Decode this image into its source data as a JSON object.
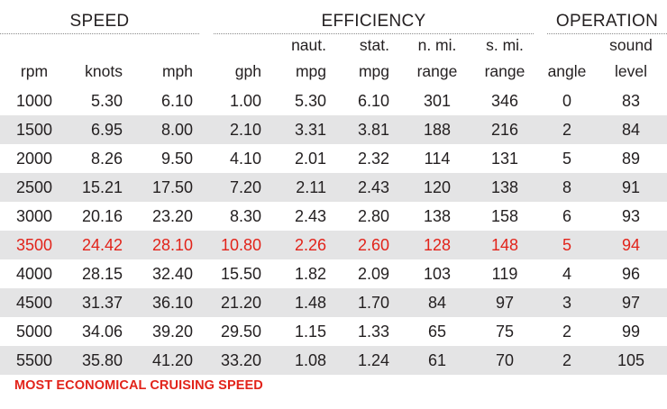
{
  "groups": {
    "speed": "SPEED",
    "efficiency": "EFFICIENCY",
    "operation": "OPERATION"
  },
  "headers": {
    "row1": [
      "",
      "",
      "",
      "",
      "naut.",
      "stat.",
      "n. mi.",
      "s. mi.",
      "",
      "sound"
    ],
    "row2": [
      "rpm",
      "knots",
      "mph",
      "gph",
      "mpg",
      "mpg",
      "range",
      "range",
      "angle",
      "level"
    ]
  },
  "rows": [
    [
      "1000",
      "5.30",
      "6.10",
      "1.00",
      "5.30",
      "6.10",
      "301",
      "346",
      "0",
      "83"
    ],
    [
      "1500",
      "6.95",
      "8.00",
      "2.10",
      "3.31",
      "3.81",
      "188",
      "216",
      "2",
      "84"
    ],
    [
      "2000",
      "8.26",
      "9.50",
      "4.10",
      "2.01",
      "2.32",
      "114",
      "131",
      "5",
      "89"
    ],
    [
      "2500",
      "15.21",
      "17.50",
      "7.20",
      "2.11",
      "2.43",
      "120",
      "138",
      "8",
      "91"
    ],
    [
      "3000",
      "20.16",
      "23.20",
      "8.30",
      "2.43",
      "2.80",
      "138",
      "158",
      "6",
      "93"
    ],
    [
      "3500",
      "24.42",
      "28.10",
      "10.80",
      "2.26",
      "2.60",
      "128",
      "148",
      "5",
      "94"
    ],
    [
      "4000",
      "28.15",
      "32.40",
      "15.50",
      "1.82",
      "2.09",
      "103",
      "119",
      "4",
      "96"
    ],
    [
      "4500",
      "31.37",
      "36.10",
      "21.20",
      "1.48",
      "1.70",
      "84",
      "97",
      "3",
      "97"
    ],
    [
      "5000",
      "34.06",
      "39.20",
      "29.50",
      "1.15",
      "1.33",
      "65",
      "75",
      "2",
      "99"
    ],
    [
      "5500",
      "35.80",
      "41.20",
      "33.20",
      "1.08",
      "1.24",
      "61",
      "70",
      "2",
      "105"
    ]
  ],
  "highlight_row_rpm": "3500",
  "highlight_color": "#e2231a",
  "stripe_color": "#e4e4e5",
  "note": "MOST ECONOMICAL CRUISING SPEED"
}
